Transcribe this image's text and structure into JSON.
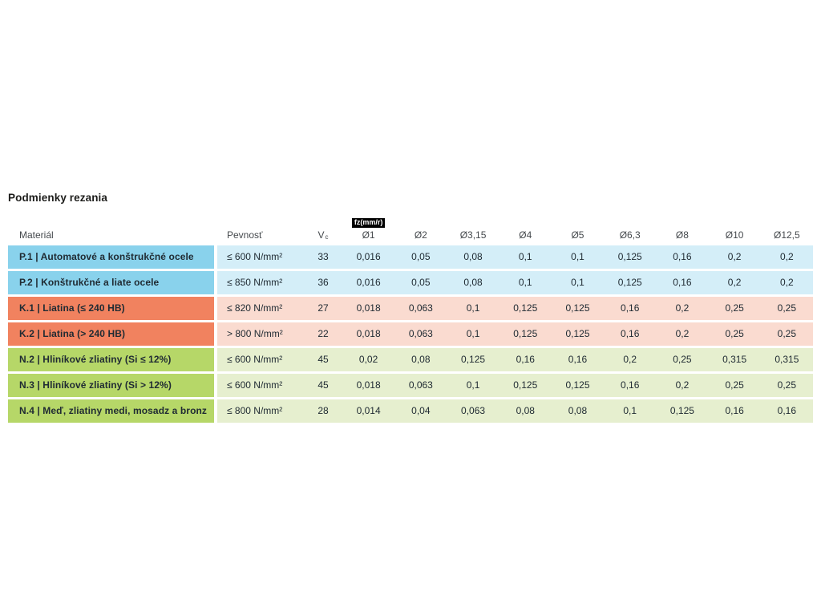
{
  "title": "Podmienky rezania",
  "colors": {
    "page_bg": "#ffffff",
    "blue_dark": "#89d2ec",
    "blue_light": "#d4eef8",
    "orange_dark": "#f1825f",
    "orange_light": "#fadbd0",
    "green_dark": "#b6d768",
    "green_light": "#e6efcf",
    "badge_bg": "#000000",
    "badge_text": "#ffffff",
    "title_text": "#1d1d1b",
    "header_text": "#45494d",
    "cell_text": "#202b33"
  },
  "table": {
    "columns": {
      "material": "Materiál",
      "strength": "Pevnosť",
      "vc_label": "V",
      "vc_sub": "c",
      "fz_badge": "fz(mm/r)",
      "diameters": [
        "Ø1",
        "Ø2",
        "Ø3,15",
        "Ø4",
        "Ø5",
        "Ø6,3",
        "Ø8",
        "Ø10",
        "Ø12,5"
      ]
    },
    "rows": [
      {
        "color": "blue",
        "material": "P.1 | Automatové a konštrukčné ocele",
        "strength": "≤ 600 N/mm²",
        "vc": "33",
        "values": [
          "0,016",
          "0,05",
          "0,08",
          "0,1",
          "0,1",
          "0,125",
          "0,16",
          "0,2",
          "0,2"
        ]
      },
      {
        "color": "blue",
        "material": "P.2 | Konštrukčné a liate ocele",
        "strength": "≤ 850 N/mm²",
        "vc": "36",
        "values": [
          "0,016",
          "0,05",
          "0,08",
          "0,1",
          "0,1",
          "0,125",
          "0,16",
          "0,2",
          "0,2"
        ]
      },
      {
        "color": "orange",
        "material": "K.1 | Liatina (≤ 240 HB)",
        "strength": "≤ 820 N/mm²",
        "vc": "27",
        "values": [
          "0,018",
          "0,063",
          "0,1",
          "0,125",
          "0,125",
          "0,16",
          "0,2",
          "0,25",
          "0,25"
        ]
      },
      {
        "color": "orange",
        "material": "K.2 | Liatina (> 240 HB)",
        "strength": "> 800 N/mm²",
        "vc": "22",
        "values": [
          "0,018",
          "0,063",
          "0,1",
          "0,125",
          "0,125",
          "0,16",
          "0,2",
          "0,25",
          "0,25"
        ]
      },
      {
        "color": "green",
        "material": "N.2 | Hliníkové zliatiny (Si ≤ 12%)",
        "strength": "≤ 600 N/mm²",
        "vc": "45",
        "values": [
          "0,02",
          "0,08",
          "0,125",
          "0,16",
          "0,16",
          "0,2",
          "0,25",
          "0,315",
          "0,315"
        ]
      },
      {
        "color": "green",
        "material": "N.3 | Hliníkové zliatiny (Si > 12%)",
        "strength": "≤ 600 N/mm²",
        "vc": "45",
        "values": [
          "0,018",
          "0,063",
          "0,1",
          "0,125",
          "0,125",
          "0,16",
          "0,2",
          "0,25",
          "0,25"
        ]
      },
      {
        "color": "green",
        "material": "N.4 | Meď, zliatiny medi, mosadz a bronz",
        "strength": "≤ 800 N/mm²",
        "vc": "28",
        "values": [
          "0,014",
          "0,04",
          "0,063",
          "0,08",
          "0,08",
          "0,1",
          "0,125",
          "0,16",
          "0,16"
        ]
      }
    ]
  }
}
